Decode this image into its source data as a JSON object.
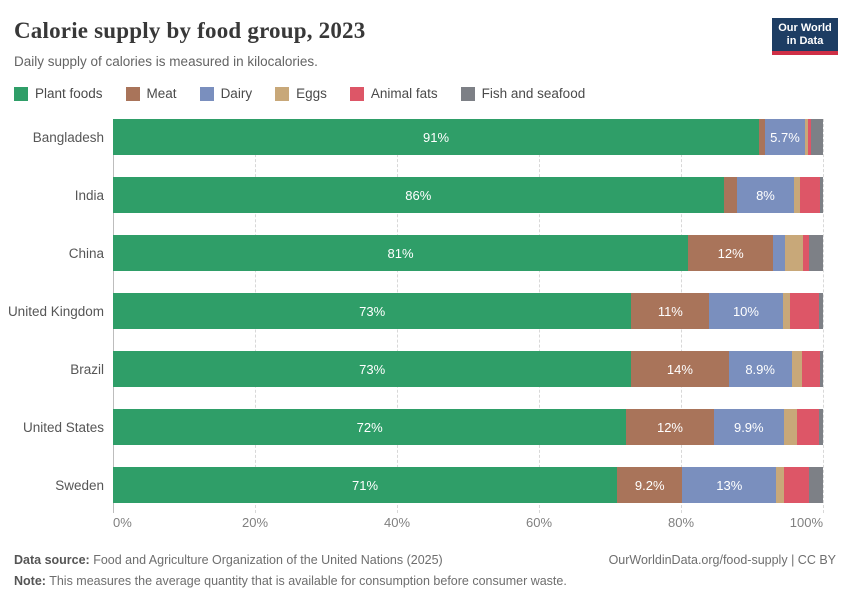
{
  "header": {
    "title": "Calorie supply by food group, 2023",
    "subtitle": "Daily supply of calories is measured in kilocalories.",
    "logo_line1": "Our World",
    "logo_line2": "in Data",
    "logo_bg": "#1d3d63",
    "logo_accent": "#cf2f46"
  },
  "legend": [
    {
      "label": "Plant foods",
      "color": "#2f9e68"
    },
    {
      "label": "Meat",
      "color": "#a9745a"
    },
    {
      "label": "Dairy",
      "color": "#7a8fbe"
    },
    {
      "label": "Eggs",
      "color": "#c8a879"
    },
    {
      "label": "Animal fats",
      "color": "#dd5667"
    },
    {
      "label": "Fish and seafood",
      "color": "#7d8086"
    }
  ],
  "chart_data": {
    "type": "bar",
    "stacked": true,
    "orientation": "horizontal",
    "unit": "%",
    "xlim": [
      0,
      100
    ],
    "x_ticks": [
      "0%",
      "20%",
      "40%",
      "60%",
      "80%",
      "100%"
    ],
    "grid": true,
    "legend_position": "top",
    "categories": [
      "Bangladesh",
      "India",
      "China",
      "United Kingdom",
      "Brazil",
      "United States",
      "Sweden"
    ],
    "series": [
      {
        "name": "Plant foods",
        "color": "#2f9e68",
        "values": [
          91,
          86,
          81,
          73,
          73,
          72.3,
          71
        ],
        "labels": [
          "91%",
          "86%",
          "81%",
          "73%",
          "73%",
          "72%",
          "71%"
        ]
      },
      {
        "name": "Meat",
        "color": "#a9745a",
        "values": [
          0.8,
          1.9,
          12,
          11,
          13.7,
          12.3,
          9.2
        ],
        "labels": [
          "",
          "",
          "12%",
          "11%",
          "14%",
          "12%",
          "9.2%"
        ]
      },
      {
        "name": "Dairy",
        "color": "#7a8fbe",
        "values": [
          5.7,
          8,
          1.6,
          10.3,
          8.9,
          9.9,
          13.2
        ],
        "labels": [
          "5.7%",
          "8%",
          "",
          "10%",
          "8.9%",
          "9.9%",
          "13%"
        ]
      },
      {
        "name": "Eggs",
        "color": "#c8a879",
        "values": [
          0.4,
          0.8,
          2.6,
          1.0,
          1.4,
          1.9,
          1.1
        ],
        "labels": [
          "",
          "",
          "",
          "",
          "",
          "",
          ""
        ]
      },
      {
        "name": "Animal fats",
        "color": "#dd5667",
        "values": [
          0.4,
          2.9,
          0.9,
          4.1,
          2.6,
          3.0,
          3.5
        ],
        "labels": [
          "",
          "",
          "",
          "",
          "",
          "",
          ""
        ]
      },
      {
        "name": "Fish and seafood",
        "color": "#7d8086",
        "values": [
          1.7,
          0.4,
          1.9,
          0.6,
          0.4,
          0.6,
          2.0
        ],
        "labels": [
          "",
          "",
          "",
          "",
          "",
          "",
          ""
        ]
      }
    ]
  },
  "footer": {
    "datasource_label": "Data source:",
    "datasource_text": " Food and Agriculture Organization of the United Nations (2025)",
    "url_text": "OurWorldinData.org/food-supply",
    "license_text": " | CC BY",
    "note_label": "Note:",
    "note_text": " This measures the average quantity that is available for consumption before consumer waste."
  }
}
